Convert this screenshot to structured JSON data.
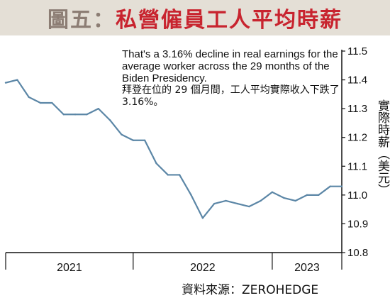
{
  "title": {
    "prefix": "圖五：",
    "main": "私營僱員工人平均時薪"
  },
  "annotation": {
    "english": "That's a 3.16% decline in real earnings for the average worker across the 29 months of the Biden Presidency.",
    "chinese": "拜登在位的 29 個月間，工人平均實際收入下跌了 3.16%。"
  },
  "source": "資料來源：ZEROHEDGE",
  "chart_data": {
    "type": "line",
    "title": "私營僱員工人平均時薪",
    "ylabel": "實際時薪（美元）",
    "xlabel": "",
    "ylim": [
      10.8,
      11.5
    ],
    "yticks": [
      "11.5",
      "11.4",
      "11.3",
      "11.2",
      "11.1",
      "11.0",
      "10.9",
      "10.8"
    ],
    "year_labels": [
      "2021",
      "2022",
      "2023"
    ],
    "x": [
      0,
      1,
      2,
      3,
      4,
      5,
      6,
      7,
      8,
      9,
      10,
      11,
      12,
      13,
      14,
      15,
      16,
      17,
      18,
      19,
      20,
      21,
      22,
      23,
      24,
      25,
      26,
      27,
      28,
      29
    ],
    "series": [
      {
        "color": "#5b86a6",
        "values": [
          11.39,
          11.4,
          11.34,
          11.32,
          11.32,
          11.28,
          11.28,
          11.28,
          11.3,
          11.26,
          11.21,
          11.19,
          11.19,
          11.11,
          11.07,
          11.07,
          11.0,
          10.92,
          10.97,
          10.98,
          10.97,
          10.96,
          10.98,
          11.01,
          10.99,
          10.98,
          11.0,
          11.0,
          11.03,
          11.03
        ]
      }
    ],
    "grid": false,
    "legend": "none"
  }
}
